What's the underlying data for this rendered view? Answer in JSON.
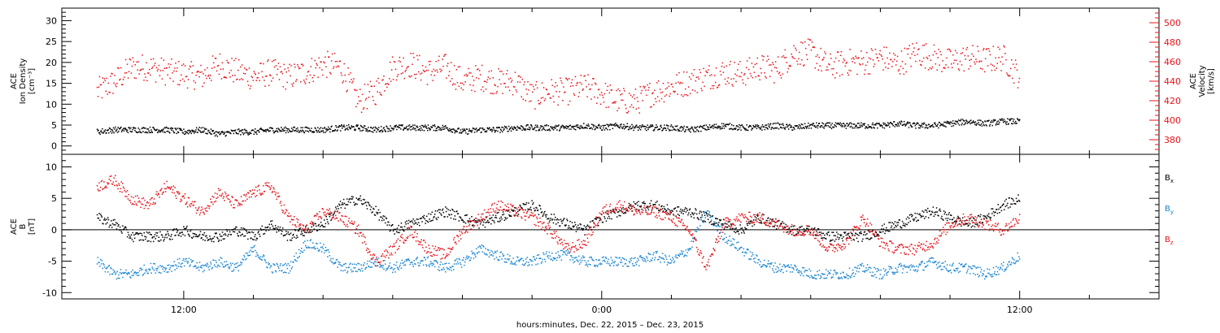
{
  "chart_data": [
    {
      "type": "scatter",
      "panel": "top",
      "ylabel_lines": [
        "ACE",
        "Ion Density",
        "[cm⁻³]"
      ],
      "y2label_lines": [
        "ACE",
        "Velocity",
        "[km/s]"
      ],
      "ylim": [
        -2,
        33
      ],
      "y2lim": [
        365,
        515
      ],
      "yticks": [
        0,
        5,
        10,
        15,
        20,
        25,
        30
      ],
      "yticks_right": [
        380,
        400,
        420,
        440,
        460,
        480,
        500
      ],
      "colors": {
        "density": "#000000",
        "velocity": "#e8141a"
      },
      "series": [
        {
          "axis": "left",
          "x": [
            -2.5,
            -2,
            -1.5,
            -1,
            -0.5,
            0,
            0.5,
            1,
            1.5,
            2,
            2.5,
            3,
            3.5,
            4,
            4.5,
            5,
            5.5,
            6,
            6.5,
            7,
            7.5,
            8,
            8.5,
            9,
            9.5,
            10,
            10.5,
            11,
            11.5,
            12,
            12.5,
            13,
            13.5,
            14,
            14.5,
            15,
            15.5,
            16,
            16.5,
            17,
            17.5,
            18,
            18.5,
            19,
            19.5,
            20,
            20.5,
            21,
            21.5,
            22,
            22.5,
            23,
            23.5,
            24
          ],
          "y": [
            3.5,
            4,
            4,
            4,
            4,
            3.5,
            4,
            3,
            3.5,
            3.5,
            4,
            4,
            4,
            4,
            4.5,
            4.5,
            4,
            4.5,
            4.5,
            4.5,
            4.5,
            3.5,
            4,
            4,
            4.5,
            4.5,
            4.5,
            4.5,
            5,
            4.5,
            5,
            4.5,
            4.5,
            4.5,
            4,
            4.5,
            5,
            4.5,
            4.5,
            5,
            4.5,
            5,
            5,
            5,
            5,
            5,
            5.5,
            5,
            5,
            5.5,
            6,
            5.5,
            6,
            6
          ]
        },
        {
          "axis": "right",
          "x": [
            -2.5,
            -2,
            -1.5,
            -1,
            -0.5,
            0,
            0.5,
            1,
            1.5,
            2,
            2.5,
            3,
            3.5,
            4,
            4.5,
            5,
            5.5,
            6,
            6.5,
            7,
            7.5,
            8,
            8.5,
            9,
            9.5,
            10,
            10.5,
            11,
            11.5,
            12,
            12.5,
            13,
            13.5,
            14,
            14.5,
            15,
            15.5,
            16,
            16.5,
            17,
            17.5,
            18,
            18.5,
            19,
            19.5,
            20,
            20.5,
            21,
            21.5,
            22,
            22.5,
            23,
            23.5,
            24
          ],
          "y": [
            430,
            440,
            455,
            455,
            450,
            448,
            445,
            458,
            450,
            445,
            450,
            445,
            450,
            458,
            455,
            420,
            430,
            455,
            458,
            450,
            455,
            440,
            445,
            440,
            440,
            425,
            430,
            430,
            435,
            428,
            420,
            420,
            430,
            435,
            440,
            445,
            450,
            448,
            455,
            452,
            470,
            470,
            455,
            460,
            460,
            465,
            458,
            470,
            465,
            460,
            465,
            462,
            465,
            445
          ]
        }
      ]
    },
    {
      "type": "scatter",
      "panel": "bottom",
      "ylabel_lines": [
        "ACE",
        "B",
        "[nT]"
      ],
      "ylim": [
        -11,
        12
      ],
      "yticks": [
        -10,
        -5,
        0,
        5,
        10
      ],
      "hline": 0,
      "colors": {
        "Bx": "#000000",
        "By": "#1a86d1",
        "Bz": "#e8141a"
      },
      "legend": [
        {
          "name": "Bx",
          "label": "B",
          "sub": "x"
        },
        {
          "name": "By",
          "label": "B",
          "sub": "y"
        },
        {
          "name": "Bz",
          "label": "B",
          "sub": "z"
        }
      ],
      "series": [
        {
          "name": "Bx",
          "x": [
            -2.5,
            -2,
            -1.5,
            -1,
            -0.5,
            0,
            0.5,
            1,
            1.5,
            2,
            2.5,
            3,
            3.5,
            4,
            4.5,
            5,
            5.5,
            6,
            6.5,
            7,
            7.5,
            8,
            8.5,
            9,
            9.5,
            10,
            10.5,
            11,
            11.5,
            12,
            12.5,
            13,
            13.5,
            14,
            14.5,
            15,
            15.5,
            16,
            16.5,
            17,
            17.5,
            18,
            18.5,
            19,
            19.5,
            20,
            20.5,
            21,
            21.5,
            22,
            22.5,
            23,
            23.5,
            24
          ],
          "y": [
            2,
            1,
            -1,
            -1,
            -1,
            0,
            -1,
            -1,
            0,
            -1,
            1,
            -1,
            0,
            1,
            4,
            5,
            3,
            0,
            1,
            2,
            3,
            2,
            1,
            2,
            3,
            4,
            2,
            1,
            0,
            2,
            3,
            4,
            4,
            3,
            3,
            2,
            1,
            0,
            2,
            1,
            0,
            0,
            -1,
            -1,
            -1,
            0,
            1,
            2,
            3,
            2,
            1,
            2,
            4,
            5
          ]
        },
        {
          "name": "By",
          "x": [
            -2.5,
            -2,
            -1.5,
            -1,
            -0.5,
            0,
            0.5,
            1,
            1.5,
            2,
            2.5,
            3,
            3.5,
            4,
            4.5,
            5,
            5.5,
            6,
            6.5,
            7,
            7.5,
            8,
            8.5,
            9,
            9.5,
            10,
            10.5,
            11,
            11.5,
            12,
            12.5,
            13,
            13.5,
            14,
            14.5,
            15,
            15.5,
            16,
            16.5,
            17,
            17.5,
            18,
            18.5,
            19,
            19.5,
            20,
            20.5,
            21,
            21.5,
            22,
            22.5,
            23,
            23.5,
            24
          ],
          "y": [
            -5,
            -7,
            -7,
            -6,
            -6,
            -5,
            -6,
            -5,
            -6,
            -3,
            -6,
            -6,
            -2,
            -3,
            -6,
            -6,
            -5,
            -6,
            -5,
            -5,
            -6,
            -5,
            -3,
            -4,
            -5,
            -5,
            -4,
            -4,
            -5,
            -5,
            -5,
            -5,
            -4,
            -5,
            -3,
            3,
            -1,
            -3,
            -5,
            -6,
            -6,
            -7,
            -7,
            -7,
            -6,
            -7,
            -6,
            -6,
            -5,
            -6,
            -6,
            -7,
            -6,
            -4
          ]
        },
        {
          "name": "Bz",
          "x": [
            -2.5,
            -2,
            -1.5,
            -1,
            -0.5,
            0,
            0.5,
            1,
            1.5,
            2,
            2.5,
            3,
            3.5,
            4,
            4.5,
            5,
            5.5,
            6,
            6.5,
            7,
            7.5,
            8,
            8.5,
            9,
            9.5,
            10,
            10.5,
            11,
            11.5,
            12,
            12.5,
            13,
            13.5,
            14,
            14.5,
            15,
            15.5,
            16,
            16.5,
            17,
            17.5,
            18,
            18.5,
            19,
            19.5,
            20,
            20.5,
            21,
            21.5,
            22,
            22.5,
            23,
            23.5,
            24
          ],
          "y": [
            7,
            8,
            5,
            4,
            7,
            5,
            3,
            6,
            4,
            6,
            7,
            2,
            0,
            3,
            2,
            0,
            -5,
            -3,
            0,
            -3,
            -4,
            0,
            2,
            4,
            3,
            2,
            0,
            -3,
            -2,
            3,
            4,
            3,
            3,
            2,
            0,
            -6,
            1,
            2,
            2,
            1,
            0,
            0,
            -3,
            -2,
            2,
            -2,
            -3,
            -3,
            -2,
            1,
            2,
            1,
            0,
            2
          ]
        }
      ]
    }
  ],
  "xaxis": {
    "xlim": [
      -3.5,
      28
    ],
    "tick_labels": [
      {
        "x": 0,
        "label": "12:00"
      },
      {
        "x": 12,
        "label": "0:00"
      },
      {
        "x": 24,
        "label": "12:00"
      }
    ],
    "minor_ticks": [
      2,
      4,
      6,
      8,
      10,
      14,
      16,
      18,
      20,
      22,
      26
    ],
    "xlabel": "hours:minutes, Dec. 22, 2015 – Dec. 23, 2015"
  }
}
